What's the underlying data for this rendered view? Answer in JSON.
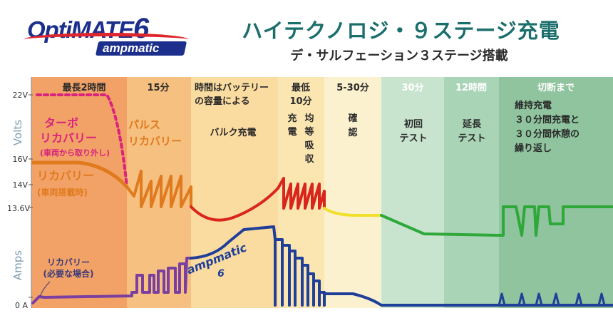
{
  "logo": {
    "brand": "OptiMATE",
    "model": "6",
    "sub": "ampmatic"
  },
  "title": "ハイテクノロジ・９ステージ充電",
  "subtitle": "デ・サルフェーション３ステージ搭載",
  "colors": {
    "volt_main": "#e07a1e",
    "turbo": "#d9237e",
    "bulk": "#d9261c",
    "verify": "#f0e02a",
    "test": "#2fa83a",
    "amps": "#1f3f99",
    "amps_rec": "#7a3fa0"
  },
  "chart_data": {
    "type": "line",
    "y_axis_volts_ticks": [
      "22V",
      "16V",
      "14V",
      "13.6V"
    ],
    "y_axis_amps_ticks": [
      "0 A"
    ],
    "y_axis_volts_label": "Volts",
    "y_axis_amps_label": "Amps",
    "stages": [
      {
        "name": "最長2時間",
        "color": "#f2a267"
      },
      {
        "name": "15分",
        "color": "#f6c080"
      },
      {
        "name": "時間はバッテリーの容量による",
        "color": "#fbdca0"
      },
      {
        "name": "最低10分",
        "color": "#fbe6b2"
      },
      {
        "name": "5-30分",
        "color": "#fbf1cf"
      },
      {
        "name": "30分",
        "color": "#c8e4cf"
      },
      {
        "name": "12時間",
        "color": "#a9d4b6"
      },
      {
        "name": "切断まで",
        "color": "#8fc49e"
      }
    ],
    "annotations": {
      "turbo": [
        "ターボ",
        "リカバリー"
      ],
      "turbo_note": "(車両から取り外し)",
      "recovery": "リカバリー",
      "recovery_note": "(車両搭載時)",
      "pulse": [
        "パルス",
        "リカバリー"
      ],
      "bulk": "バルク充電",
      "absorb_col1": [
        "充",
        "電"
      ],
      "absorb_col2": [
        "均",
        "等",
        "吸",
        "収"
      ],
      "verify": [
        "確",
        "認"
      ],
      "test1": [
        "初回",
        "テスト"
      ],
      "test2": [
        "延長",
        "テスト"
      ],
      "maint": [
        "維持充電",
        "３０分間充電と",
        "３０分間休憩の",
        "繰り返し"
      ],
      "amp_recovery": [
        "リカバリー",
        "(必要な場合)"
      ],
      "amp_logo": [
        "ampmatic",
        "6"
      ]
    }
  }
}
